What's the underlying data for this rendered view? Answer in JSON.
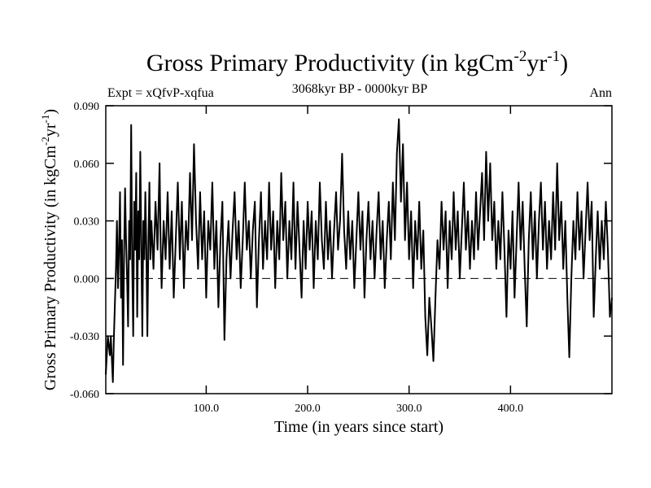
{
  "chart_data": {
    "type": "line",
    "title": "Gross Primary Productivity (in kgCm",
    "title_unit_parts": {
      "sup1": "-2",
      "mid": "yr",
      "sup2": "-1",
      "end": ")"
    },
    "subtitle_left": "Expt = xQfvP-xqfua",
    "subtitle_center": "3068kyr BP - 0000kyr BP",
    "subtitle_right": "Ann",
    "xlabel": "Time (in years since start)",
    "ylabel": "Gross Primary Productivity (in kgCm",
    "ylabel_unit_parts": {
      "sup1": "-2",
      "mid": "yr",
      "sup2": "-1",
      "end": ")"
    },
    "xlim": [
      1,
      500
    ],
    "ylim": [
      -0.06,
      0.09
    ],
    "xticks": [
      100,
      200,
      300,
      400
    ],
    "xtick_labels": [
      "100.0",
      "200.0",
      "300.0",
      "400.0"
    ],
    "yticks": [
      -0.06,
      -0.03,
      0.0,
      0.03,
      0.06,
      0.09
    ],
    "ytick_labels": [
      "-0.060",
      "-0.030",
      "0.000",
      "0.030",
      "0.060",
      "0.090"
    ],
    "zero_line": 0.0,
    "series": [
      {
        "name": "Ann",
        "keypoints": [
          [
            1,
            -0.05
          ],
          [
            3,
            -0.03
          ],
          [
            5,
            -0.04
          ],
          [
            6,
            -0.03
          ],
          [
            8,
            -0.054
          ],
          [
            9,
            -0.03
          ],
          [
            11,
            0.005
          ],
          [
            12,
            0.03
          ],
          [
            13,
            -0.005
          ],
          [
            14,
            0.015
          ],
          [
            15,
            0.045
          ],
          [
            16,
            -0.01
          ],
          [
            17,
            0.02
          ],
          [
            18,
            -0.045
          ],
          [
            19,
            0.01
          ],
          [
            20,
            0.047
          ],
          [
            21,
            0.02
          ],
          [
            22,
            0.0
          ],
          [
            23,
            -0.025
          ],
          [
            24,
            0.03
          ],
          [
            25,
            0.01
          ],
          [
            26,
            0.08
          ],
          [
            27,
            0.01
          ],
          [
            28,
            -0.03
          ],
          [
            29,
            0.04
          ],
          [
            30,
            0.015
          ],
          [
            31,
            0.055
          ],
          [
            32,
            -0.02
          ],
          [
            33,
            0.035
          ],
          [
            34,
            0.01
          ],
          [
            35,
            0.066
          ],
          [
            36,
            0.02
          ],
          [
            37,
            -0.03
          ],
          [
            38,
            0.03
          ],
          [
            39,
            0.01
          ],
          [
            40,
            0.045
          ],
          [
            41,
            0.015
          ],
          [
            42,
            -0.03
          ],
          [
            43,
            0.02
          ],
          [
            44,
            0.05
          ],
          [
            45,
            0.01
          ],
          [
            46,
            0.03
          ],
          [
            48,
            0.005
          ],
          [
            50,
            0.04
          ],
          [
            52,
            0.015
          ],
          [
            54,
            0.06
          ],
          [
            55,
            0.02
          ],
          [
            56,
            -0.005
          ],
          [
            58,
            0.03
          ],
          [
            60,
            0.01
          ],
          [
            62,
            0.045
          ],
          [
            64,
            0.005
          ],
          [
            66,
            0.035
          ],
          [
            68,
            -0.01
          ],
          [
            70,
            0.02
          ],
          [
            72,
            0.05
          ],
          [
            74,
            0.01
          ],
          [
            76,
            0.04
          ],
          [
            78,
            -0.005
          ],
          [
            80,
            0.03
          ],
          [
            82,
            0.015
          ],
          [
            84,
            0.055
          ],
          [
            86,
            0.02
          ],
          [
            88,
            0.07
          ],
          [
            90,
            0.03
          ],
          [
            92,
            0.005
          ],
          [
            94,
            0.045
          ],
          [
            96,
            0.01
          ],
          [
            98,
            0.035
          ],
          [
            100,
            -0.01
          ],
          [
            102,
            0.03
          ],
          [
            104,
            0.015
          ],
          [
            106,
            0.05
          ],
          [
            108,
            0.005
          ],
          [
            110,
            0.03
          ],
          [
            112,
            -0.015
          ],
          [
            114,
            0.02
          ],
          [
            116,
            0.04
          ],
          [
            118,
            -0.032
          ],
          [
            120,
            0.01
          ],
          [
            122,
            0.03
          ],
          [
            124,
            0.0
          ],
          [
            126,
            0.025
          ],
          [
            128,
            0.045
          ],
          [
            130,
            0.01
          ],
          [
            132,
            0.03
          ],
          [
            134,
            -0.005
          ],
          [
            136,
            0.02
          ],
          [
            138,
            0.05
          ],
          [
            140,
            0.015
          ],
          [
            142,
            0.03
          ],
          [
            144,
            0.0
          ],
          [
            146,
            0.025
          ],
          [
            148,
            0.04
          ],
          [
            150,
            -0.015
          ],
          [
            152,
            0.02
          ],
          [
            154,
            0.045
          ],
          [
            156,
            0.005
          ],
          [
            158,
            0.03
          ],
          [
            160,
            0.01
          ],
          [
            162,
            0.05
          ],
          [
            164,
            0.015
          ],
          [
            166,
            0.035
          ],
          [
            168,
            -0.005
          ],
          [
            170,
            0.03
          ],
          [
            172,
            0.01
          ],
          [
            174,
            0.055
          ],
          [
            176,
            0.02
          ],
          [
            178,
            0.04
          ],
          [
            180,
            0.0
          ],
          [
            182,
            0.03
          ],
          [
            184,
            0.01
          ],
          [
            186,
            0.05
          ],
          [
            188,
            0.005
          ],
          [
            190,
            0.04
          ],
          [
            192,
            0.015
          ],
          [
            194,
            -0.01
          ],
          [
            196,
            0.03
          ],
          [
            198,
            0.005
          ],
          [
            200,
            0.04
          ],
          [
            202,
            0.015
          ],
          [
            204,
            0.035
          ],
          [
            206,
            -0.005
          ],
          [
            208,
            0.03
          ],
          [
            210,
            0.01
          ],
          [
            212,
            0.05
          ],
          [
            214,
            0.02
          ],
          [
            216,
            0.005
          ],
          [
            218,
            0.04
          ],
          [
            220,
            0.01
          ],
          [
            222,
            0.03
          ],
          [
            224,
            0.0
          ],
          [
            226,
            0.025
          ],
          [
            228,
            0.045
          ],
          [
            230,
            0.015
          ],
          [
            232,
            0.03
          ],
          [
            234,
            0.065
          ],
          [
            236,
            0.025
          ],
          [
            238,
            0.005
          ],
          [
            240,
            0.035
          ],
          [
            242,
            0.01
          ],
          [
            244,
            0.03
          ],
          [
            246,
            -0.005
          ],
          [
            248,
            0.02
          ],
          [
            250,
            0.045
          ],
          [
            252,
            0.015
          ],
          [
            254,
            0.035
          ],
          [
            256,
            -0.01
          ],
          [
            258,
            0.02
          ],
          [
            260,
            0.04
          ],
          [
            262,
            0.01
          ],
          [
            264,
            0.03
          ],
          [
            266,
            0.0
          ],
          [
            268,
            0.025
          ],
          [
            270,
            0.045
          ],
          [
            272,
            0.01
          ],
          [
            274,
            0.03
          ],
          [
            276,
            -0.005
          ],
          [
            278,
            0.02
          ],
          [
            280,
            0.04
          ],
          [
            282,
            0.01
          ],
          [
            284,
            0.05
          ],
          [
            286,
            0.02
          ],
          [
            288,
            0.065
          ],
          [
            290,
            0.083
          ],
          [
            292,
            0.04
          ],
          [
            294,
            0.07
          ],
          [
            296,
            0.02
          ],
          [
            298,
            0.05
          ],
          [
            300,
            0.01
          ],
          [
            302,
            0.035
          ],
          [
            304,
            -0.005
          ],
          [
            306,
            0.03
          ],
          [
            308,
            0.01
          ],
          [
            310,
            0.04
          ],
          [
            312,
            0.005
          ],
          [
            314,
            0.025
          ],
          [
            316,
            -0.02
          ],
          [
            318,
            -0.04
          ],
          [
            320,
            -0.01
          ],
          [
            322,
            -0.025
          ],
          [
            324,
            -0.043
          ],
          [
            326,
            -0.01
          ],
          [
            328,
            0.02
          ],
          [
            330,
            0.005
          ],
          [
            332,
            0.04
          ],
          [
            334,
            0.015
          ],
          [
            336,
            0.035
          ],
          [
            338,
            -0.005
          ],
          [
            340,
            0.03
          ],
          [
            342,
            0.01
          ],
          [
            344,
            0.045
          ],
          [
            346,
            0.015
          ],
          [
            348,
            0.035
          ],
          [
            350,
            0.0
          ],
          [
            352,
            0.025
          ],
          [
            354,
            0.05
          ],
          [
            356,
            0.015
          ],
          [
            358,
            0.035
          ],
          [
            360,
            0.005
          ],
          [
            362,
            0.03
          ],
          [
            364,
            0.01
          ],
          [
            366,
            0.045
          ],
          [
            368,
            0.015
          ],
          [
            370,
            0.035
          ],
          [
            372,
            0.055
          ],
          [
            374,
            0.02
          ],
          [
            376,
            0.066
          ],
          [
            378,
            0.03
          ],
          [
            380,
            0.06
          ],
          [
            382,
            0.02
          ],
          [
            384,
            0.04
          ],
          [
            386,
            0.005
          ],
          [
            388,
            0.03
          ],
          [
            390,
            0.01
          ],
          [
            392,
            0.045
          ],
          [
            394,
            0.015
          ],
          [
            396,
            -0.02
          ],
          [
            398,
            0.025
          ],
          [
            400,
            0.005
          ],
          [
            402,
            0.035
          ],
          [
            404,
            -0.01
          ],
          [
            406,
            0.02
          ],
          [
            408,
            0.05
          ],
          [
            410,
            0.015
          ],
          [
            412,
            0.04
          ],
          [
            414,
            0.005
          ],
          [
            416,
            -0.025
          ],
          [
            418,
            0.02
          ],
          [
            420,
            0.045
          ],
          [
            422,
            0.01
          ],
          [
            424,
            0.035
          ],
          [
            426,
            0.0
          ],
          [
            428,
            0.03
          ],
          [
            430,
            0.05
          ],
          [
            432,
            0.015
          ],
          [
            434,
            0.04
          ],
          [
            436,
            0.005
          ],
          [
            438,
            0.03
          ],
          [
            440,
            0.01
          ],
          [
            442,
            0.045
          ],
          [
            444,
            0.015
          ],
          [
            446,
            0.06
          ],
          [
            448,
            0.02
          ],
          [
            450,
            0.04
          ],
          [
            452,
            0.005
          ],
          [
            454,
            0.03
          ],
          [
            456,
            -0.01
          ],
          [
            458,
            -0.041
          ],
          [
            460,
            0.0
          ],
          [
            462,
            0.03
          ],
          [
            464,
            0.01
          ],
          [
            466,
            0.045
          ],
          [
            468,
            0.015
          ],
          [
            470,
            0.035
          ],
          [
            472,
            0.0
          ],
          [
            474,
            0.025
          ],
          [
            476,
            0.05
          ],
          [
            478,
            0.02
          ],
          [
            480,
            0.04
          ],
          [
            482,
            -0.02
          ],
          [
            484,
            0.01
          ],
          [
            486,
            0.035
          ],
          [
            488,
            0.005
          ],
          [
            490,
            0.03
          ],
          [
            492,
            0.01
          ],
          [
            494,
            0.04
          ],
          [
            496,
            0.015
          ],
          [
            498,
            -0.02
          ],
          [
            500,
            -0.01
          ]
        ]
      }
    ]
  }
}
